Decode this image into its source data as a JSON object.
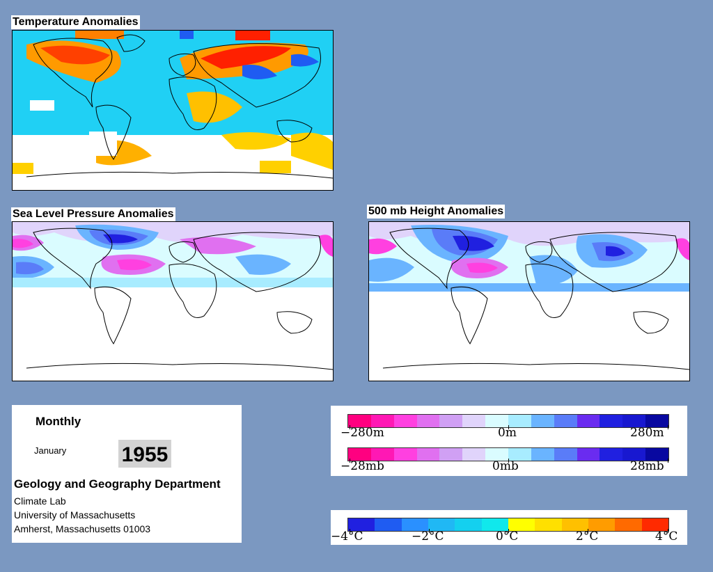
{
  "maps": {
    "temperature": {
      "title": "Temperature Anomalies"
    },
    "slp": {
      "title": "Sea Level Pressure Anomalies"
    },
    "height": {
      "title": "500 mb Height Anomalies"
    }
  },
  "info": {
    "period": "Monthly",
    "month": "January",
    "year": "1955",
    "department": "Geology and Geography Department",
    "lab": "Climate Lab",
    "university": "University of Massachusetts",
    "address": "Amherst, Massachusetts 01003"
  },
  "legends": {
    "height": {
      "min": "−280m",
      "mid": "0m",
      "max": "280m"
    },
    "pressure": {
      "min": "−28mb",
      "mid": "0mb",
      "max": "28mb"
    },
    "temperature": {
      "labels": [
        "−4°C",
        "−2°C",
        "0°C",
        "2°C",
        "4°C"
      ]
    }
  },
  "colors": {
    "background": "#7b98c1",
    "anomaly_scale": [
      "#ff0080",
      "#ff18b4",
      "#ff40e0",
      "#e070f0",
      "#d0a0f4",
      "#e0d4fb",
      "#dafcff",
      "#a8ecff",
      "#6ab4ff",
      "#5a7cf8",
      "#6a2cf0",
      "#2020e0",
      "#1818d0",
      "#0808a0"
    ],
    "temperature_scale": [
      "#2020e0",
      "#1f5cf2",
      "#2a90ff",
      "#20b8f4",
      "#14d0ef",
      "#10e8ec",
      "#ffff00",
      "#ffe000",
      "#ffc000",
      "#ff9c00",
      "#ff6a00",
      "#ff2a00"
    ]
  }
}
